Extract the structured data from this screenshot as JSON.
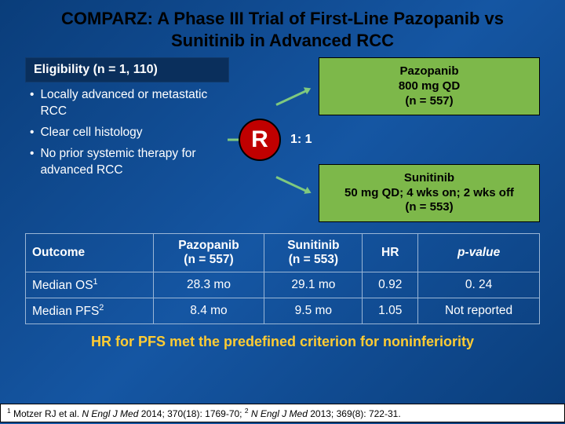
{
  "title": "COMPARZ: A Phase III Trial of First-Line Pazopanib vs Sunitinib in Advanced RCC",
  "eligibility": {
    "header": "Eligibility (n = 1, 110)",
    "items": [
      "Locally advanced or metastatic RCC",
      "Clear cell histology",
      "No prior systemic therapy for advanced RCC"
    ]
  },
  "randomize": {
    "letter": "R",
    "ratio": "1: 1"
  },
  "arms": {
    "a": "Pazopanib\n800 mg QD\n(n = 557)",
    "b": "Sunitinib\n50 mg QD; 4 wks on; 2 wks off\n(n = 553)"
  },
  "table": {
    "headers": [
      "Outcome",
      "Pazopanib\n(n = 557)",
      "Sunitinib\n(n = 553)",
      "HR",
      "p-value"
    ],
    "rows": [
      [
        "Median OS",
        "1",
        "28.3 mo",
        "29.1 mo",
        "0.92",
        "0. 24"
      ],
      [
        "Median PFS",
        "2",
        "8.4 mo",
        "9.5 mo",
        "1.05",
        "Not reported"
      ]
    ]
  },
  "conclusion": "HR for PFS met the predefined criterion for noninferiority",
  "footnote": {
    "ref1_num": "1",
    "ref1_a": " Motzer RJ et al. ",
    "ref1_i": "N Engl J Med ",
    "ref1_b": "2014; 370(18): 1769-70; ",
    "ref2_num": "2",
    "ref2_i": " N Engl J Med ",
    "ref2_b": "2013; 369(8): 722-31."
  },
  "colors": {
    "arm_green": "#7db84a",
    "r_red": "#c00000",
    "gold": "#ffcc33"
  }
}
